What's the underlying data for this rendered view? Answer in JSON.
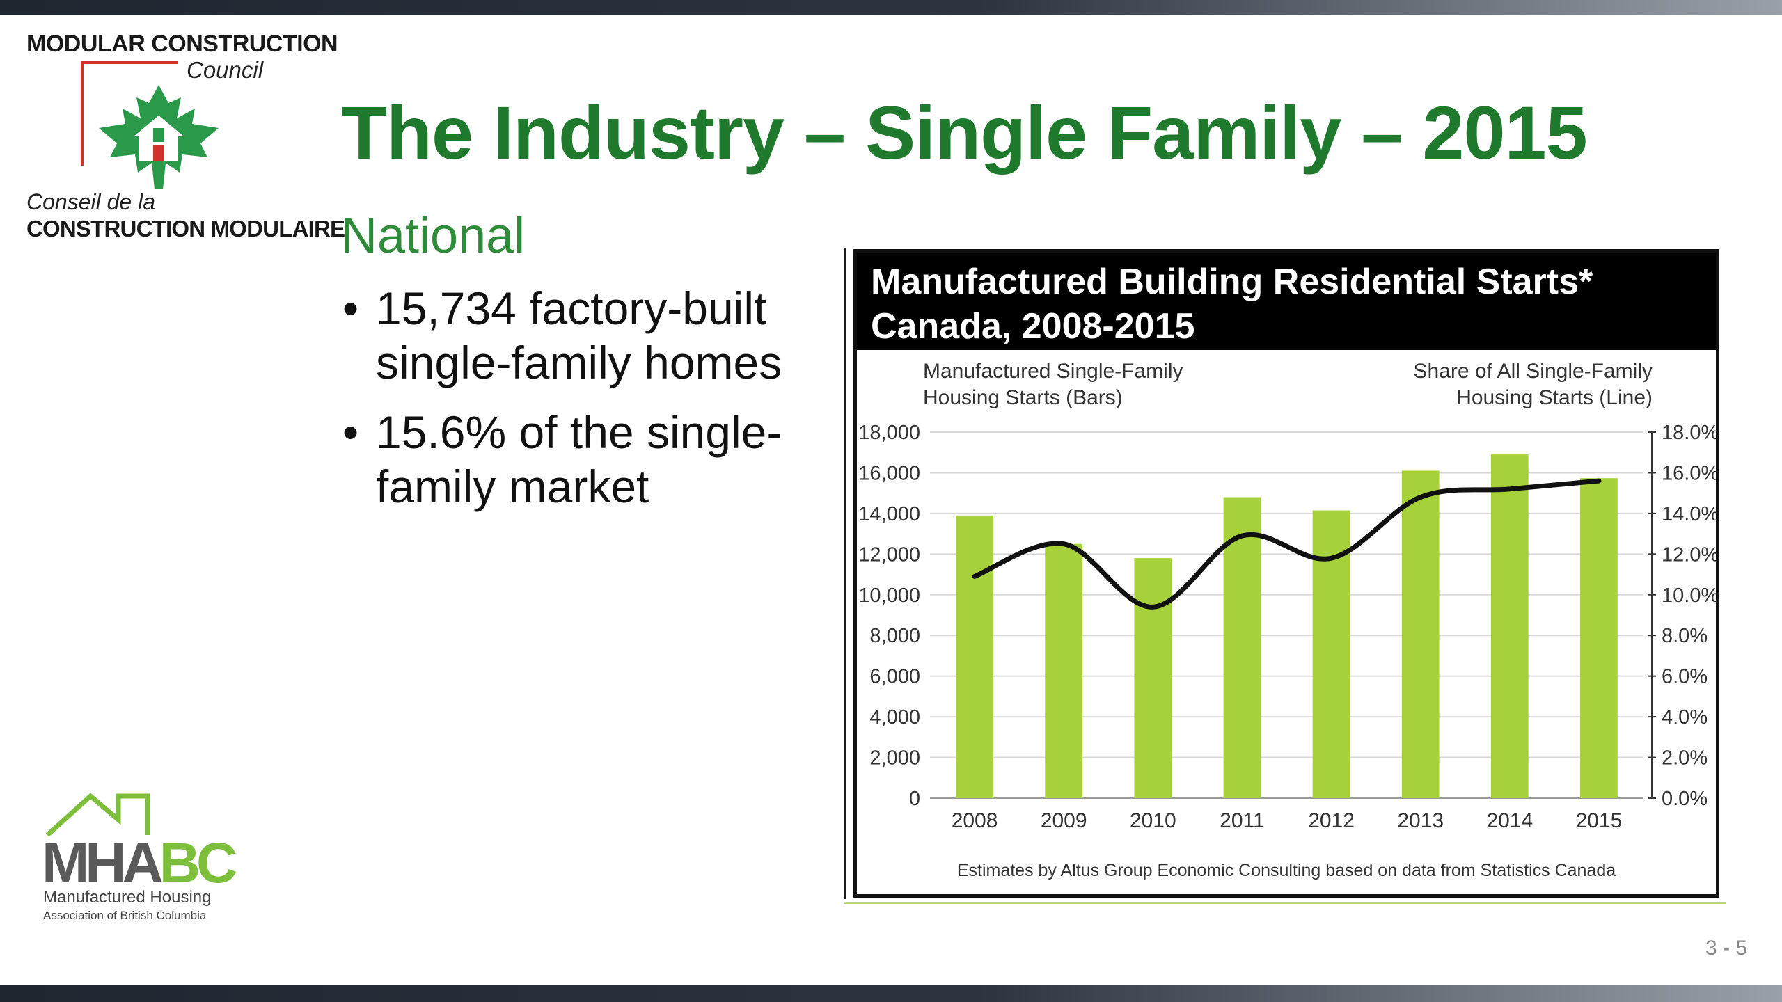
{
  "logo_mcc": {
    "line1": "MODULAR CONSTRUCTION",
    "line2": "Council",
    "line3": "Conseil de la",
    "line4": "CONSTRUCTION MODULAIRE"
  },
  "slide": {
    "title": "The Industry – Single Family – 2015",
    "subtitle": "National",
    "bullets": [
      "15,734 factory-built single-family homes",
      "15.6% of the single-family market"
    ],
    "page_number": "3 - 5"
  },
  "logo_mhabc": {
    "mark_a": "MHA",
    "mark_b": "BC",
    "line1": "Manufactured Housing",
    "line2": "Association of British Columbia"
  },
  "colors": {
    "title_green": "#1f7a2e",
    "bar_green": "#a6d13a",
    "line_black": "#111111",
    "accent_red": "#d0312d",
    "leaf_green": "#2a9a4a"
  },
  "chart_data": {
    "type": "bar",
    "title": "Manufactured Building Residential Starts*\nCanada, 2008-2015",
    "left_axis_label": [
      "Manufactured Single-Family",
      "Housing Starts (Bars)"
    ],
    "right_axis_label": [
      "Share of All Single-Family",
      "Housing Starts (Line)"
    ],
    "categories": [
      "2008",
      "2009",
      "2010",
      "2011",
      "2012",
      "2013",
      "2014",
      "2015"
    ],
    "series": [
      {
        "name": "Manufactured Single-Family Housing Starts (Bars)",
        "type": "bar",
        "axis": "left",
        "values": [
          13900,
          12500,
          11800,
          14800,
          14150,
          16100,
          16900,
          15734
        ]
      },
      {
        "name": "Share of All Single-Family Housing Starts (Line)",
        "type": "line",
        "axis": "right",
        "values": [
          10.9,
          12.5,
          9.4,
          12.9,
          11.8,
          14.8,
          15.2,
          15.6
        ]
      }
    ],
    "ylim_left": [
      0,
      18000
    ],
    "yticks_left": [
      "0",
      "2,000",
      "4,000",
      "6,000",
      "8,000",
      "10,000",
      "12,000",
      "14,000",
      "16,000",
      "18,000"
    ],
    "ylim_right": [
      0,
      18
    ],
    "yticks_right": [
      "0.0%",
      "2.0%",
      "4.0%",
      "6.0%",
      "8.0%",
      "10.0%",
      "12.0%",
      "14.0%",
      "16.0%",
      "18.0%"
    ],
    "grid": true,
    "footnote": "Estimates by Altus Group Economic Consulting based on data from Statistics Canada"
  }
}
